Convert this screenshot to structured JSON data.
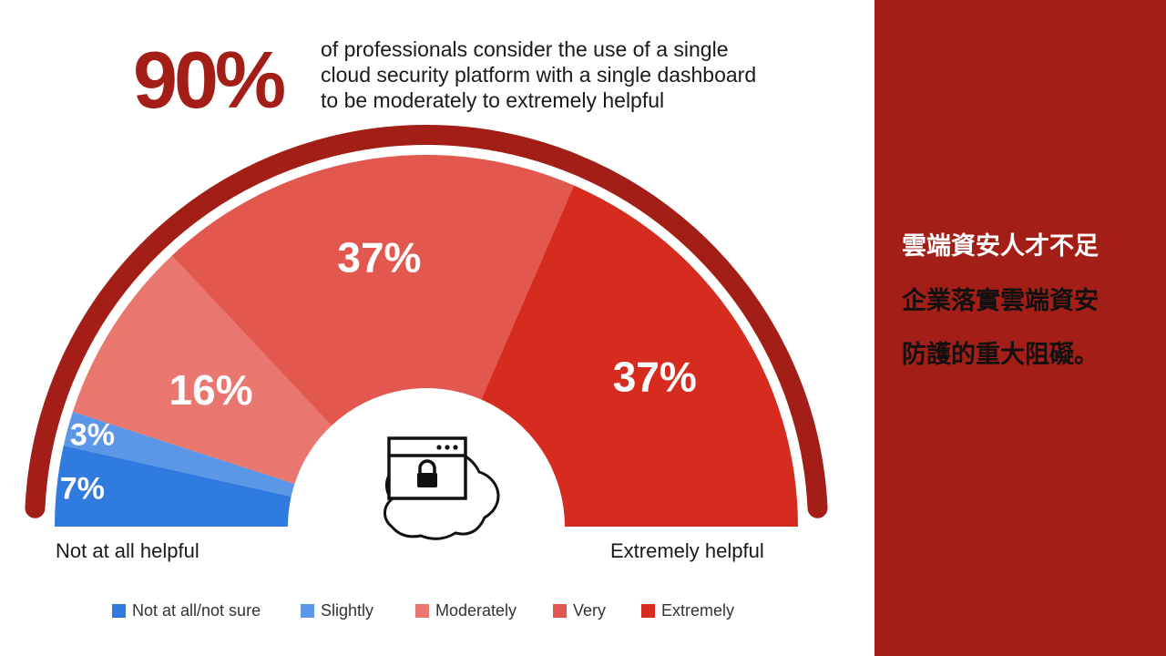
{
  "headline": {
    "number": "90%",
    "text_lines": [
      "of professionals consider the use of a single",
      "cloud security platform with a single dashboard",
      "to be moderately to extremely helpful"
    ]
  },
  "chart_data": {
    "type": "pie",
    "style": "semicircle-donut",
    "categories": [
      "Not at all/not sure",
      "Slightly",
      "Moderately",
      "Very",
      "Extremely"
    ],
    "values": [
      7,
      3,
      16,
      37,
      37
    ],
    "labels": [
      "7%",
      "3%",
      "16%",
      "37%",
      "37%"
    ],
    "colors": [
      "#2f7be0",
      "#5b97e6",
      "#e9776f",
      "#e2574e",
      "#d62c20"
    ],
    "end_labels": {
      "left": "Not at all helpful",
      "right": "Extremely helpful"
    },
    "legend_position": "bottom",
    "center_icon": "cloud-lock-window-icon"
  },
  "side_panel": {
    "lines": [
      "雲端資安人才不足",
      "企業落實雲端資安",
      "防護的重大阻礙。"
    ],
    "background_color": "#a21e16"
  }
}
